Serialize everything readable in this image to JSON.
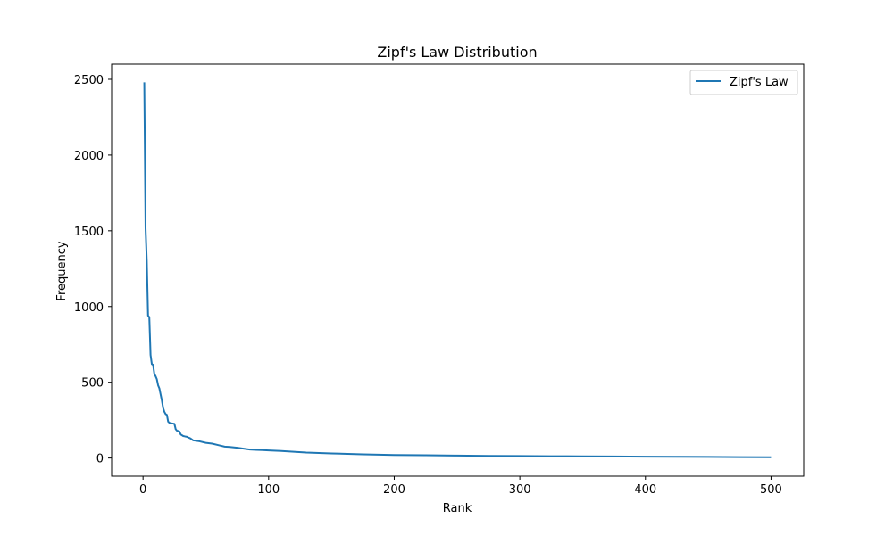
{
  "chart_data": {
    "type": "line",
    "title": "Zipf's Law Distribution",
    "xlabel": "Rank",
    "ylabel": "Frequency",
    "xlim": [
      -25,
      526
    ],
    "ylim": [
      -120,
      2600
    ],
    "xticks": [
      0,
      100,
      200,
      300,
      400,
      500
    ],
    "yticks": [
      0,
      500,
      1000,
      1500,
      2000,
      2500
    ],
    "grid": false,
    "legend_position": "top-right",
    "series": [
      {
        "name": "Zipf's Law",
        "color": "#1f77b4",
        "x": [
          1,
          2,
          3,
          4,
          5,
          6,
          7,
          8,
          9,
          10,
          11,
          12,
          13,
          14,
          15,
          16,
          17,
          18,
          19,
          20,
          21,
          22,
          23,
          24,
          25,
          26,
          27,
          28,
          29,
          30,
          31,
          32,
          33,
          34,
          35,
          36,
          37,
          38,
          39,
          40,
          42,
          45,
          50,
          55,
          60,
          65,
          70,
          75,
          80,
          85,
          90,
          95,
          100,
          110,
          120,
          130,
          140,
          150,
          160,
          175,
          200,
          225,
          250,
          275,
          300,
          325,
          350,
          375,
          400,
          425,
          450,
          475,
          500
        ],
        "y": [
          2480,
          1520,
          1300,
          940,
          930,
          680,
          620,
          615,
          555,
          540,
          520,
          480,
          460,
          420,
          380,
          330,
          305,
          290,
          285,
          240,
          232,
          230,
          228,
          227,
          225,
          190,
          180,
          178,
          175,
          155,
          150,
          145,
          143,
          141,
          140,
          135,
          132,
          128,
          122,
          116,
          114,
          110,
          100,
          95,
          85,
          75,
          72,
          68,
          62,
          56,
          54,
          52,
          50,
          46,
          41,
          36,
          33,
          30,
          28,
          24,
          20,
          18,
          16,
          14,
          13,
          12,
          11,
          10,
          9,
          8,
          7,
          6,
          5
        ]
      }
    ]
  }
}
